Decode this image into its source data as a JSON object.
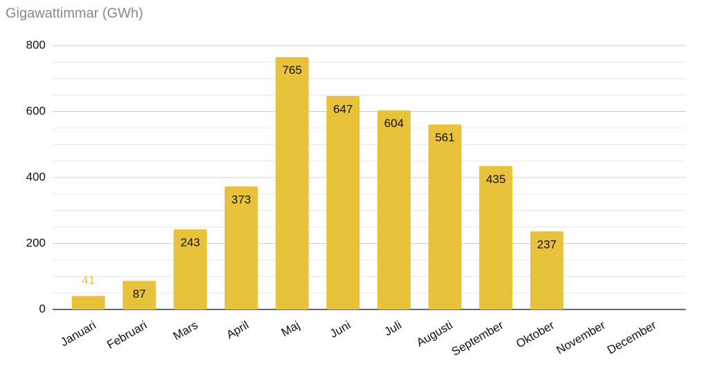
{
  "chart_data": {
    "type": "bar",
    "y_axis_title": "Gigawattimmar (GWh)",
    "categories": [
      "Januari",
      "Februari",
      "Mars",
      "April",
      "Maj",
      "Juni",
      "Juli",
      "Augusti",
      "September",
      "Oktober",
      "November",
      "December"
    ],
    "values": [
      41,
      87,
      243,
      373,
      765,
      647,
      604,
      561,
      435,
      237,
      null,
      null
    ],
    "color": "#e9c23c",
    "ylim": [
      0,
      800
    ],
    "yticks": [
      0,
      200,
      400,
      600,
      800
    ],
    "minor_yticks": [
      50,
      100,
      150,
      250,
      300,
      350,
      450,
      500,
      550,
      650,
      700,
      750
    ],
    "grid": true
  }
}
